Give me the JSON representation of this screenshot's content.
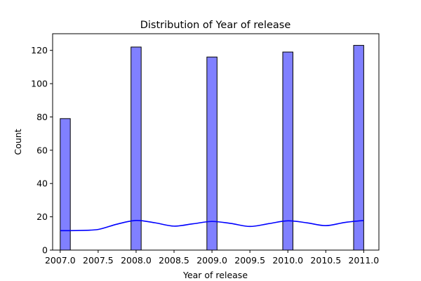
{
  "chart_data": {
    "type": "bar",
    "title": "Distribution of Year of release",
    "xlabel": "Year of release",
    "ylabel": "Count",
    "xlim": [
      2006.9,
      2011.2
    ],
    "ylim": [
      0,
      130
    ],
    "x_ticks": [
      2007.0,
      2007.5,
      2008.0,
      2008.5,
      2009.0,
      2009.5,
      2010.0,
      2010.5,
      2011.0
    ],
    "x_tick_labels": [
      "2007.0",
      "2007.5",
      "2008.0",
      "2008.5",
      "2009.0",
      "2009.5",
      "2010.0",
      "2010.5",
      "2011.0"
    ],
    "y_ticks": [
      0,
      20,
      40,
      60,
      80,
      100,
      120
    ],
    "y_tick_labels": [
      "0",
      "20",
      "40",
      "60",
      "80",
      "100",
      "120"
    ],
    "bar_color": "#8080ff",
    "bar_edge_color": "#000000",
    "kde_color": "#0000ff",
    "bars": [
      {
        "x0": 2007.0,
        "x1": 2007.133,
        "value": 79
      },
      {
        "x0": 2007.933,
        "x1": 2008.067,
        "value": 122
      },
      {
        "x0": 2008.933,
        "x1": 2009.067,
        "value": 116
      },
      {
        "x0": 2009.933,
        "x1": 2010.067,
        "value": 119
      },
      {
        "x0": 2010.867,
        "x1": 2011.0,
        "value": 123
      }
    ],
    "kde": {
      "x": [
        2007.0,
        2007.25,
        2007.5,
        2007.75,
        2008.0,
        2008.25,
        2008.5,
        2008.75,
        2009.0,
        2009.25,
        2009.5,
        2009.75,
        2010.0,
        2010.25,
        2010.5,
        2010.75,
        2011.0
      ],
      "y": [
        11.7,
        11.8,
        12.4,
        15.6,
        17.8,
        16.4,
        14.4,
        15.8,
        17.2,
        16.0,
        14.2,
        15.9,
        17.6,
        16.4,
        14.7,
        16.6,
        17.8
      ]
    },
    "grid": false,
    "legend": "none"
  }
}
